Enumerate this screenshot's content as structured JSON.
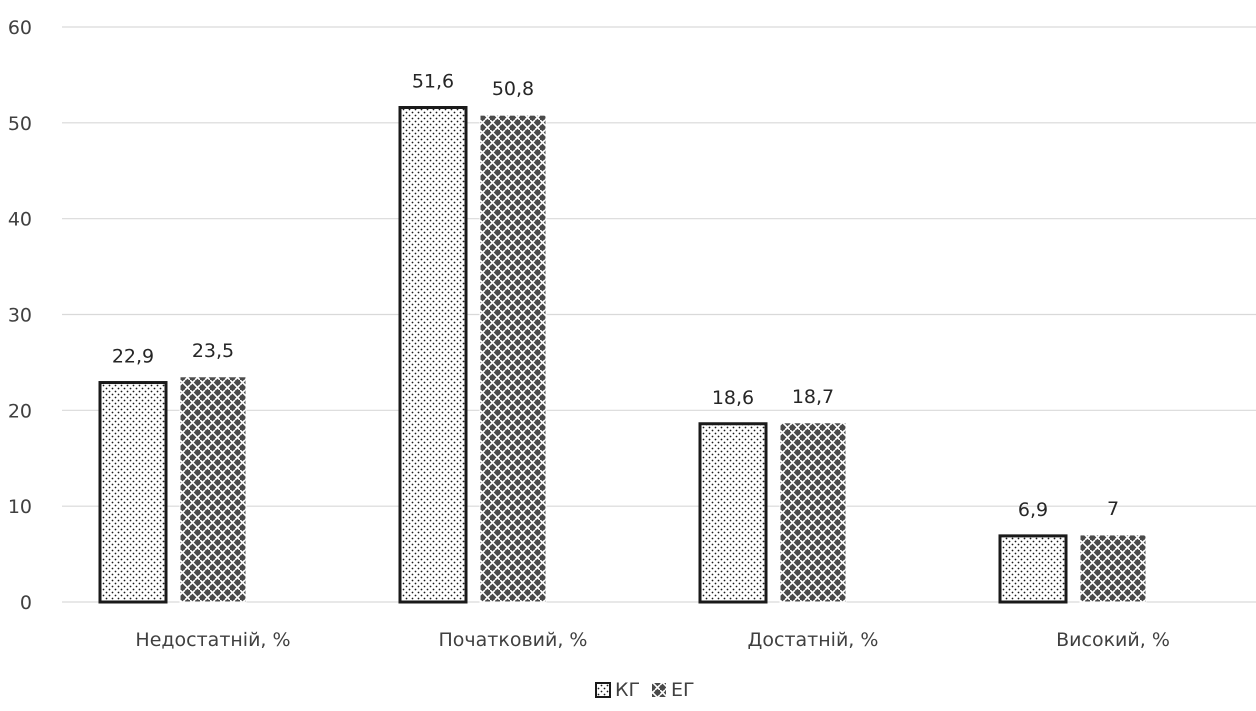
{
  "chart_data": {
    "type": "bar",
    "categories": [
      "Недостатній, %",
      "Початковий, %",
      "Достатній, %",
      "Високий, %"
    ],
    "series": [
      {
        "name": "КГ",
        "values": [
          22.9,
          51.6,
          18.6,
          6.9
        ],
        "value_labels": [
          "22,9",
          "51,6",
          "18,6",
          "6,9"
        ],
        "pattern": "dots"
      },
      {
        "name": "ЕГ",
        "values": [
          23.5,
          50.8,
          18.7,
          7
        ],
        "value_labels": [
          "23,5",
          "50,8",
          "18,7",
          "7"
        ],
        "pattern": "weave"
      }
    ],
    "ylim": [
      0,
      60
    ],
    "yticks": [
      0,
      10,
      20,
      30,
      40,
      50,
      60
    ],
    "grid": true,
    "legend_position": "bottom",
    "colors": {
      "grid": "#d9d9d9",
      "bar_outline": "#1a1a1a",
      "pattern_ink": "#1a1a1a",
      "text": "#404040"
    }
  }
}
